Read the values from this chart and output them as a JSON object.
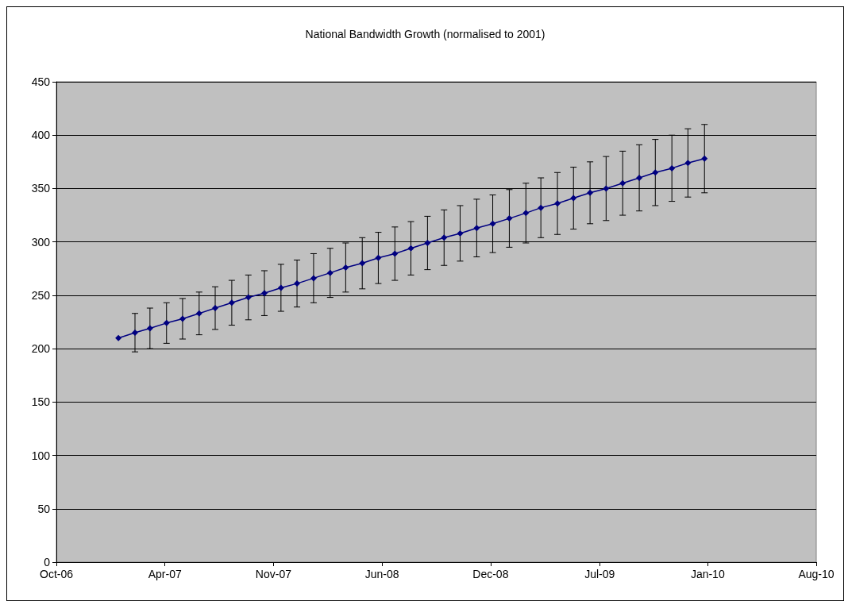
{
  "chart_data": {
    "type": "line",
    "title": "National Bandwidth Growth (normalised to 2001)",
    "x": [
      "2007-01-25",
      "2007-02-25",
      "2007-03-25",
      "2007-04-25",
      "2007-05-25",
      "2007-06-25",
      "2007-07-25",
      "2007-08-25",
      "2007-09-25",
      "2007-10-25",
      "2007-11-25",
      "2007-12-25",
      "2008-01-25",
      "2008-02-25",
      "2008-03-25",
      "2008-04-25",
      "2008-05-25",
      "2008-06-25",
      "2008-07-25",
      "2008-08-25",
      "2008-09-25",
      "2008-10-25",
      "2008-11-25",
      "2008-12-25",
      "2009-01-25",
      "2009-02-25",
      "2009-03-25",
      "2009-04-25",
      "2009-05-25",
      "2009-06-25",
      "2009-07-25",
      "2009-08-25",
      "2009-09-25",
      "2009-10-25",
      "2009-11-25",
      "2009-12-25",
      "2010-01-25"
    ],
    "series": [
      {
        "color": "#000080",
        "values": [
          210,
          215,
          219,
          224,
          228,
          233,
          238,
          243,
          248,
          252,
          257,
          261,
          266,
          271,
          276,
          280,
          285,
          289,
          294,
          299,
          304,
          308,
          313,
          317,
          322,
          327,
          332,
          336,
          341,
          346,
          350,
          355,
          360,
          365,
          369,
          374,
          378
        ],
        "errors": [
          null,
          18,
          19,
          19,
          19,
          20,
          20,
          21,
          21,
          21,
          22,
          22,
          23,
          23,
          23,
          24,
          24,
          25,
          25,
          25,
          26,
          26,
          27,
          27,
          27,
          28,
          28,
          29,
          29,
          29,
          30,
          30,
          31,
          31,
          31,
          32,
          32
        ]
      }
    ],
    "xlim": [
      "2006-10-01",
      "2010-08-22"
    ],
    "xticks": [
      {
        "value": "2006-10-01",
        "label": "Oct-06"
      },
      {
        "value": "2007-04-22",
        "label": "Apr-07"
      },
      {
        "value": "2007-11-11",
        "label": "Nov-07"
      },
      {
        "value": "2008-06-01",
        "label": "Jun-08"
      },
      {
        "value": "2008-12-21",
        "label": "Dec-08"
      },
      {
        "value": "2009-07-13",
        "label": "Jul-09"
      },
      {
        "value": "2010-01-31",
        "label": "Jan-10"
      },
      {
        "value": "2010-08-22",
        "label": "Aug-10"
      }
    ],
    "ylim": [
      0,
      450
    ],
    "yticks": [
      0,
      50,
      100,
      150,
      200,
      250,
      300,
      350,
      400,
      450
    ],
    "grid": "y",
    "marker": "diamond",
    "line_style": "solid"
  }
}
